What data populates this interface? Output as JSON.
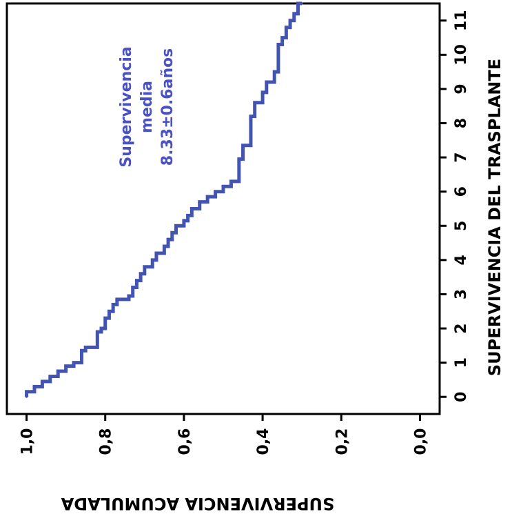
{
  "chart_data": {
    "type": "line",
    "title": "",
    "xlabel": "SUPERVIVENCIA DEL TRASPLANTE",
    "ylabel": "SUPERVIVENCIA ACUMULADA",
    "xlim": [
      -0.5,
      11.5
    ],
    "ylim": [
      -0.05,
      1.05
    ],
    "x_ticks": [
      0,
      1,
      2,
      3,
      4,
      5,
      6,
      7,
      8,
      9,
      10,
      11
    ],
    "x_tick_labels": [
      "0",
      "1",
      "2",
      "3",
      "4",
      "5",
      "6",
      "7",
      "8",
      "9",
      "10",
      "11"
    ],
    "y_ticks": [
      1.0,
      0.8,
      0.6,
      0.4,
      0.2,
      0.0
    ],
    "y_tick_labels": [
      "1,0",
      "0,8",
      "0,6",
      "0,4",
      "0,2",
      "0,0"
    ],
    "grid": false,
    "annotation": [
      "Supervivencia",
      "media",
      "8.33±0.6años"
    ],
    "colors": {
      "curve": "#4354b0",
      "annotation": "#4a52c2",
      "axis": "#000000"
    },
    "series": [
      {
        "values_x": [
          0,
          0.15,
          0.3,
          0.45,
          0.6,
          0.75,
          0.9,
          1.0,
          1.35,
          1.45,
          1.9,
          2.0,
          2.3,
          2.5,
          2.7,
          2.85,
          2.95,
          3.2,
          3.4,
          3.6,
          3.8,
          4.0,
          4.2,
          4.4,
          4.6,
          4.8,
          5.0,
          5.15,
          5.3,
          5.5,
          5.7,
          5.85,
          6.0,
          6.15,
          6.3,
          6.95,
          7.35,
          8.2,
          8.6,
          8.9,
          9.2,
          9.5,
          10.3,
          10.5,
          10.8,
          11.0,
          11.2,
          11.5
        ],
        "values_y": [
          1.0,
          0.98,
          0.96,
          0.94,
          0.92,
          0.9,
          0.88,
          0.86,
          0.85,
          0.82,
          0.81,
          0.8,
          0.79,
          0.78,
          0.77,
          0.74,
          0.73,
          0.72,
          0.71,
          0.7,
          0.68,
          0.67,
          0.65,
          0.64,
          0.63,
          0.62,
          0.6,
          0.59,
          0.58,
          0.56,
          0.54,
          0.52,
          0.5,
          0.48,
          0.46,
          0.45,
          0.43,
          0.42,
          0.4,
          0.39,
          0.37,
          0.36,
          0.35,
          0.34,
          0.33,
          0.32,
          0.31,
          0.3
        ]
      }
    ]
  }
}
